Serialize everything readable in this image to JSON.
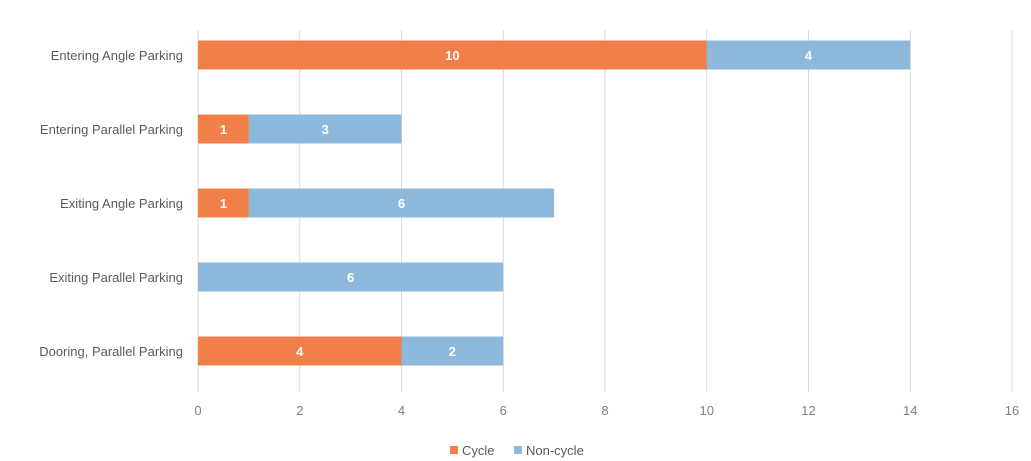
{
  "chart_data": {
    "type": "bar",
    "orientation": "horizontal",
    "stacked": true,
    "categories": [
      "Entering Angle Parking",
      "Entering Parallel Parking",
      "Exiting Angle Parking",
      "Exiting Parallel Parking",
      "Dooring, Parallel Parking"
    ],
    "series": [
      {
        "name": "Cycle",
        "color": "#f07f4a",
        "values": [
          10,
          1,
          1,
          0,
          4
        ]
      },
      {
        "name": "Non-cycle",
        "color": "#8db9dc",
        "values": [
          4,
          3,
          6,
          6,
          2
        ]
      }
    ],
    "data_labels": [
      [
        "10",
        "1",
        "1",
        "",
        "4"
      ],
      [
        "4",
        "3",
        "6",
        "6",
        "2"
      ]
    ],
    "xticks": [
      0,
      2,
      4,
      6,
      8,
      10,
      12,
      14,
      16
    ],
    "xlim": [
      0,
      16
    ],
    "grid": "vertical",
    "legend_position": "bottom",
    "title": "",
    "xlabel": "",
    "ylabel": ""
  }
}
